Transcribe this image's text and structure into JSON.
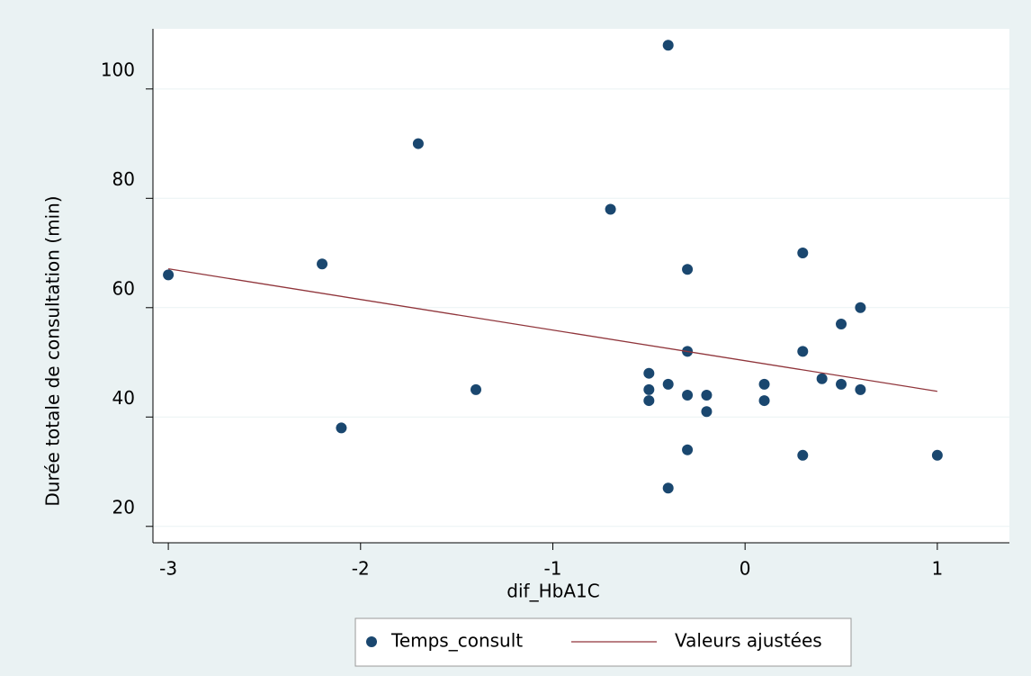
{
  "chart_data": {
    "type": "scatter",
    "x_label": "dif_HbA1C",
    "y_label": "Durée totale de consultation (min)",
    "series": [
      {
        "name": "Temps_consult",
        "type": "scatter",
        "color": "#1a476f",
        "x": [
          -3,
          -2.2,
          -2.1,
          -1.7,
          -1.4,
          -0.7,
          -0.4,
          -0.5,
          -0.5,
          -0.5,
          -0.4,
          -0.4,
          -0.3,
          -0.3,
          -0.3,
          -0.3,
          -0.2,
          -0.2,
          0.1,
          0.1,
          0.3,
          0.3,
          0.3,
          0.4,
          0.5,
          0.5,
          0.6,
          0.6,
          1
        ],
        "values": [
          66,
          68,
          38,
          90,
          45,
          78,
          108,
          48,
          45,
          43,
          46,
          27,
          67,
          52,
          44,
          34,
          44,
          41,
          46,
          43,
          70,
          52,
          33,
          47,
          57,
          46,
          60,
          45,
          33
        ]
      },
      {
        "name": "Valeurs ajustées",
        "type": "line",
        "color": "#90353b",
        "x": [
          -3,
          1
        ],
        "values": [
          67.1,
          44.7
        ]
      }
    ],
    "xlim": [
      -3.08,
      1.375
    ],
    "ylim": [
      17,
      111
    ],
    "xticks": [
      -3,
      -2,
      -1,
      0,
      1
    ],
    "yticks": [
      20,
      40,
      60,
      80,
      100
    ],
    "grid": true,
    "legend": "bottom"
  }
}
